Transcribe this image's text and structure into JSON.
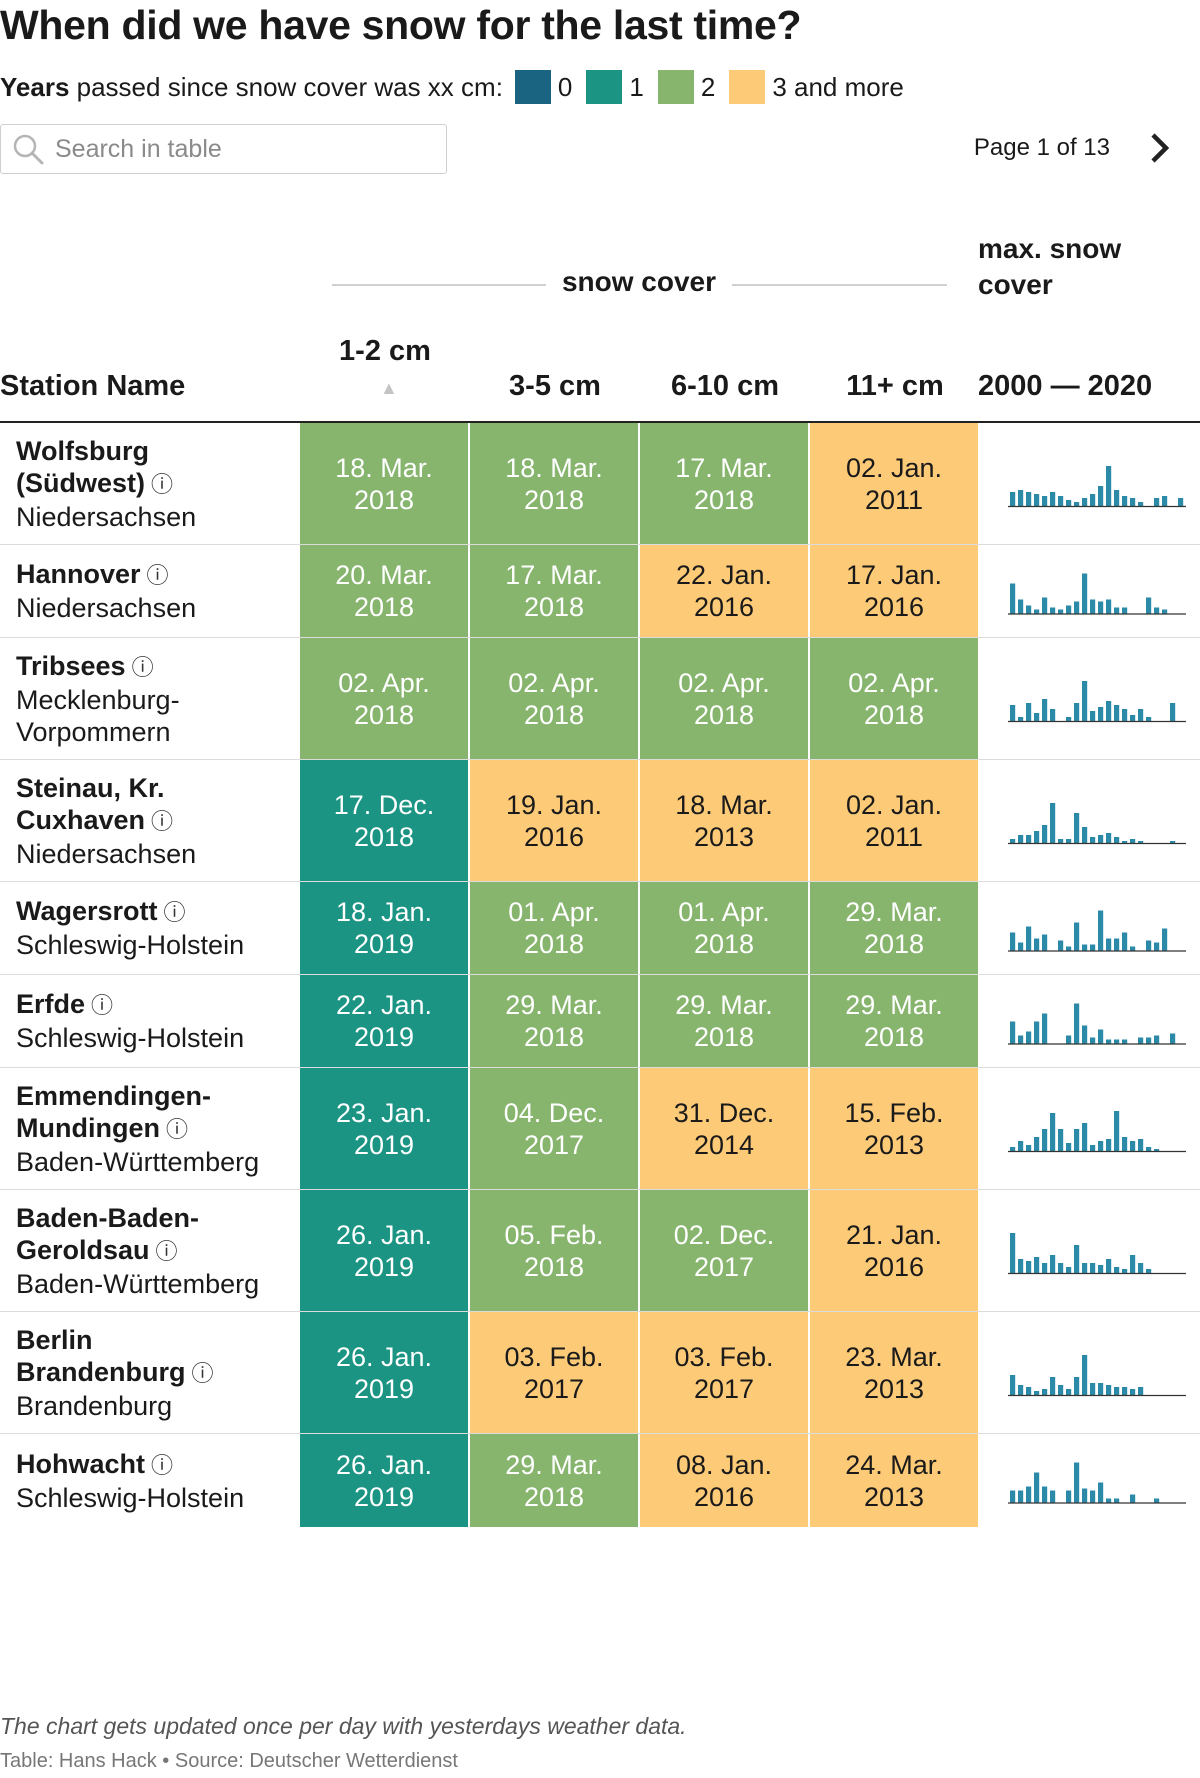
{
  "title": "When did we have snow for the last time?",
  "legend": {
    "prefix_bold": "Years",
    "prefix_rest": "passed since snow cover was xx cm:",
    "items": [
      {
        "label": "0",
        "color": "#1a6482"
      },
      {
        "label": "1",
        "color": "#1b9484"
      },
      {
        "label": "2",
        "color": "#87b56e"
      },
      {
        "label": "3 and more",
        "color": "#fdca78"
      }
    ]
  },
  "search": {
    "placeholder": "Search in table",
    "icon": "search-icon"
  },
  "pager": {
    "label": "Page 1 of 13",
    "icon": "chevron-right-icon"
  },
  "table": {
    "group_label": "snow cover",
    "columns": {
      "station": "Station Name",
      "c0": "1-2 cm",
      "c1": "3-5 cm",
      "c2": "6-10 cm",
      "c3": "11+ cm",
      "max_title": "max. snow cover",
      "range": "2000 — 2020"
    },
    "sort_indicator": "▲",
    "info_glyph": "ⓘ"
  },
  "chart_data": {
    "type": "table",
    "color_levels": {
      "1": "#1b9484",
      "2": "#87b56e",
      "3": "#fdca78"
    },
    "spark_color": "#2b8aa7",
    "rows": [
      {
        "name": "Wolfsburg (Südwest)",
        "region": "Niedersachsen",
        "dates": [
          "18. Mar. 2018",
          "18. Mar. 2018",
          "17. Mar. 2018",
          "02. Jan. 2011"
        ],
        "levels": [
          2,
          2,
          2,
          3
        ],
        "spark": [
          0.35,
          0.4,
          0.35,
          0.3,
          0.25,
          0.35,
          0.25,
          0.15,
          0.1,
          0.2,
          0.3,
          0.5,
          1,
          0.4,
          0.25,
          0.2,
          0.1,
          0,
          0.2,
          0.25,
          0,
          0.2
        ]
      },
      {
        "name": "Hannover",
        "region": "Niedersachsen",
        "dates": [
          "20. Mar. 2018",
          "17. Mar. 2018",
          "22. Jan. 2016",
          "17. Jan. 2016"
        ],
        "levels": [
          2,
          2,
          3,
          3
        ],
        "spark": [
          0.75,
          0.35,
          0.2,
          0.1,
          0.4,
          0.15,
          0.1,
          0.2,
          0.3,
          1,
          0.35,
          0.3,
          0.35,
          0.15,
          0.15,
          0,
          0,
          0.4,
          0.15,
          0.1,
          0,
          0
        ]
      },
      {
        "name": "Tribsees",
        "region": "Mecklenburg-Vorpommern",
        "dates": [
          "02. Apr. 2018",
          "02. Apr. 2018",
          "02. Apr. 2018",
          "02. Apr. 2018"
        ],
        "levels": [
          2,
          2,
          2,
          2
        ],
        "spark": [
          0.4,
          0.1,
          0.45,
          0.2,
          0.55,
          0.3,
          0,
          0.1,
          0.45,
          1,
          0.25,
          0.35,
          0.5,
          0.4,
          0.3,
          0.15,
          0.3,
          0.1,
          0,
          0,
          0.45,
          0
        ]
      },
      {
        "name": "Steinau, Kr. Cuxhaven",
        "region": "Niedersachsen",
        "dates": [
          "17. Dec. 2018",
          "19. Jan. 2016",
          "18. Mar. 2013",
          "02. Jan. 2011"
        ],
        "levels": [
          1,
          3,
          3,
          3
        ],
        "spark": [
          0.1,
          0.2,
          0.2,
          0.3,
          0.45,
          1,
          0.1,
          0.1,
          0.75,
          0.4,
          0.15,
          0.2,
          0.25,
          0.15,
          0.05,
          0.1,
          0.05,
          0,
          0,
          0,
          0.05,
          0
        ]
      },
      {
        "name": "Wagersrott",
        "region": "Schleswig-Holstein",
        "dates": [
          "18. Jan. 2019",
          "01. Apr. 2018",
          "01. Apr. 2018",
          "29. Mar. 2018"
        ],
        "levels": [
          1,
          2,
          2,
          2
        ],
        "spark": [
          0.45,
          0.2,
          0.6,
          0.3,
          0.4,
          0,
          0.25,
          0.1,
          0.7,
          0.15,
          0.15,
          1,
          0.3,
          0.3,
          0.45,
          0.1,
          0,
          0.25,
          0.2,
          0.55,
          0,
          0
        ]
      },
      {
        "name": "Erfde",
        "region": "Schleswig-Holstein",
        "dates": [
          "22. Jan. 2019",
          "29. Mar. 2018",
          "29. Mar. 2018",
          "29. Mar. 2018"
        ],
        "levels": [
          1,
          2,
          2,
          2
        ],
        "spark": [
          0.55,
          0.2,
          0.3,
          0.55,
          0.75,
          0,
          0,
          0.2,
          1,
          0.45,
          0.15,
          0.35,
          0.1,
          0.1,
          0.1,
          0,
          0.15,
          0.15,
          0.2,
          0,
          0.25,
          0
        ]
      },
      {
        "name": "Emmendingen-Mundingen",
        "region": "Baden-Württemberg",
        "dates": [
          "23. Jan. 2019",
          "04. Dec. 2017",
          "31. Dec. 2014",
          "15. Feb. 2013"
        ],
        "levels": [
          1,
          2,
          3,
          3
        ],
        "spark": [
          0.1,
          0.25,
          0.15,
          0.35,
          0.55,
          0.95,
          0.55,
          0.2,
          0.55,
          0.7,
          0.15,
          0.25,
          0.3,
          1,
          0.35,
          0.25,
          0.3,
          0.1,
          0.05,
          0,
          0,
          0
        ]
      },
      {
        "name": "Baden-Baden-Geroldsau",
        "region": "Baden-Württemberg",
        "dates": [
          "26. Jan. 2019",
          "05. Feb. 2018",
          "02. Dec. 2017",
          "21. Jan. 2016"
        ],
        "levels": [
          1,
          2,
          2,
          3
        ],
        "spark": [
          1,
          0.35,
          0.3,
          0.4,
          0.25,
          0.45,
          0.25,
          0.15,
          0.7,
          0.25,
          0.25,
          0.2,
          0.35,
          0.15,
          0.1,
          0.45,
          0.25,
          0.1,
          0,
          0,
          0,
          0
        ]
      },
      {
        "name": "Berlin Brandenburg",
        "region": "Brandenburg",
        "dates": [
          "26. Jan. 2019",
          "03. Feb. 2017",
          "03. Feb. 2017",
          "23. Mar. 2013"
        ],
        "levels": [
          1,
          3,
          3,
          3
        ],
        "spark": [
          0.5,
          0.25,
          0.2,
          0.1,
          0.15,
          0.45,
          0.25,
          0.15,
          0.45,
          1,
          0.3,
          0.3,
          0.25,
          0.2,
          0.2,
          0.15,
          0.2,
          0,
          0,
          0,
          0,
          0
        ]
      },
      {
        "name": "Hohwacht",
        "region": "Schleswig-Holstein",
        "dates": [
          "26. Jan. 2019",
          "29. Mar. 2018",
          "08. Jan. 2016",
          "24. Mar. 2013"
        ],
        "levels": [
          1,
          2,
          3,
          3
        ],
        "spark": [
          0.3,
          0.3,
          0.4,
          0.75,
          0.4,
          0.3,
          0,
          0.3,
          1,
          0.35,
          0.3,
          0.5,
          0.1,
          0.1,
          0,
          0.2,
          0,
          0,
          0.1,
          0,
          0,
          0
        ]
      }
    ]
  },
  "footnote": "The chart gets updated once per day with yesterdays weather data.",
  "credits": "Table: Hans Hack • Source: Deutscher Wetterdienst"
}
